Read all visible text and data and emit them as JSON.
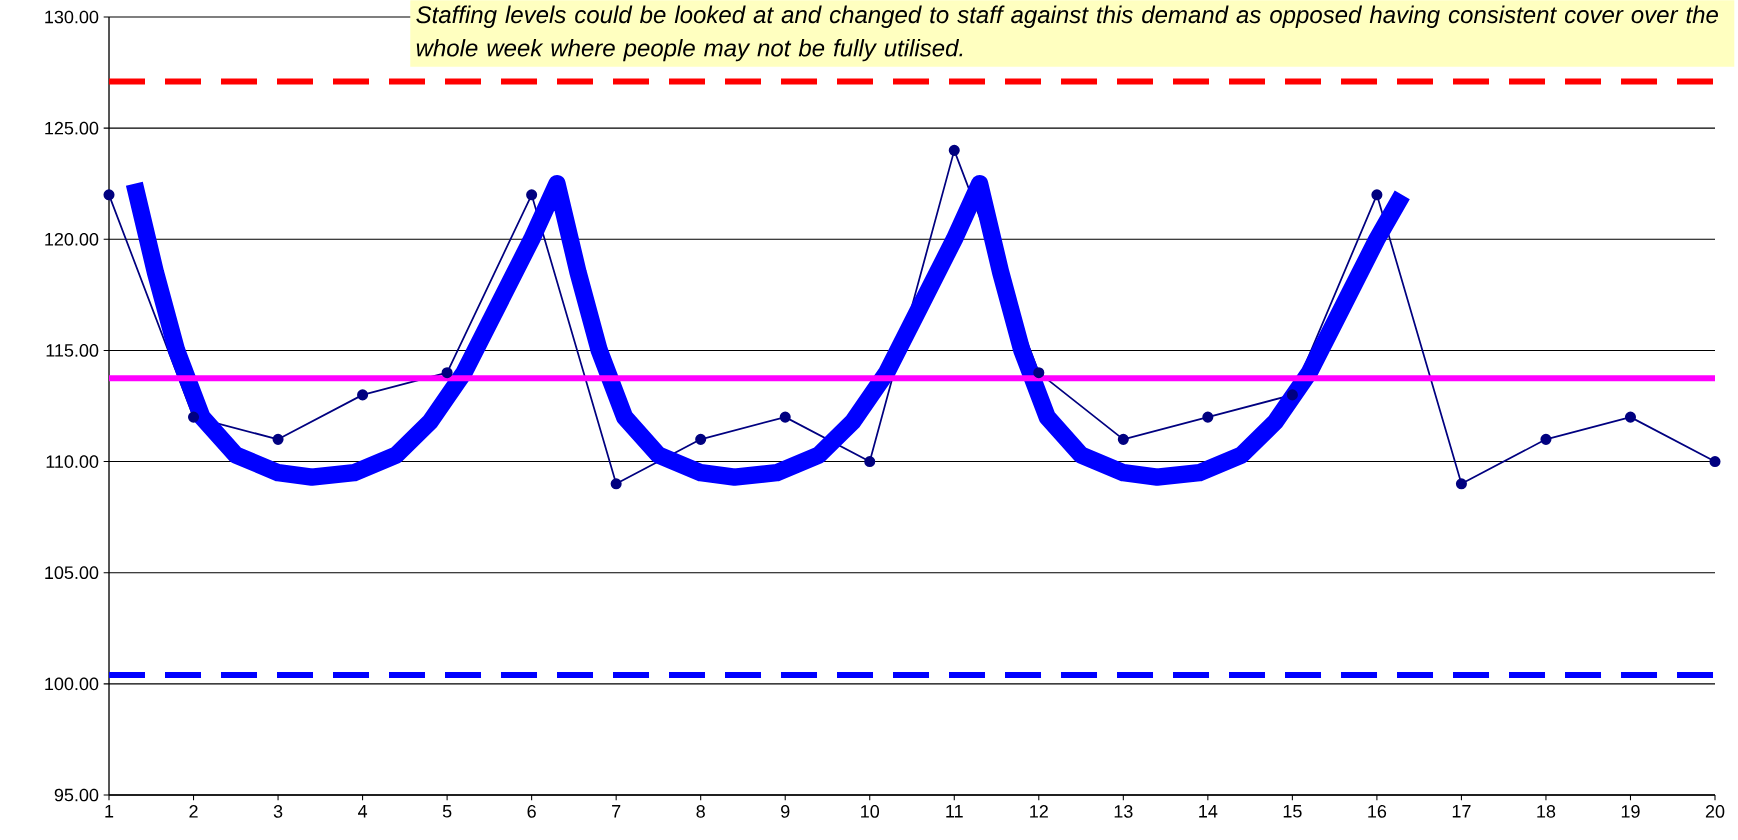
{
  "chart_data": {
    "type": "line",
    "xlim": [
      1,
      20
    ],
    "ylim": [
      95,
      130
    ],
    "x": [
      1,
      2,
      3,
      4,
      5,
      6,
      7,
      8,
      9,
      10,
      11,
      12,
      13,
      14,
      15,
      16,
      17,
      18,
      19,
      20
    ],
    "xticks": [
      1,
      2,
      3,
      4,
      5,
      6,
      7,
      8,
      9,
      10,
      11,
      12,
      13,
      14,
      15,
      16,
      17,
      18,
      19,
      20
    ],
    "yticks": [
      {
        "value": 95,
        "label": "95.00"
      },
      {
        "value": 100,
        "label": "100.00"
      },
      {
        "value": 105,
        "label": "105.00"
      },
      {
        "value": 110,
        "label": "110.00"
      },
      {
        "value": 115,
        "label": "115.00"
      },
      {
        "value": 120,
        "label": "120.00"
      },
      {
        "value": 125,
        "label": "125.00"
      },
      {
        "value": 130,
        "label": "130.00"
      }
    ],
    "grid": "y",
    "marker": "circle",
    "line_style": "solid",
    "series": [
      {
        "color": "#000080",
        "values": [
          122,
          112,
          111,
          113,
          114,
          122,
          109,
          111,
          112,
          110,
          124,
          114,
          111,
          112,
          113,
          122,
          109,
          111,
          112,
          110
        ]
      },
      {
        "color": "#0000ff",
        "marker": "none",
        "x": [
          1.3,
          1.55,
          1.8,
          2.1,
          2.5,
          3.0,
          3.4,
          3.9,
          4.4,
          4.8,
          5.2,
          5.6,
          6.0,
          6.3,
          6.55,
          6.8,
          7.1,
          7.5,
          8.0,
          8.4,
          8.9,
          9.4,
          9.8,
          10.2,
          10.6,
          11.0,
          11.3,
          11.55,
          11.8,
          12.1,
          12.5,
          13.0,
          13.4,
          13.9,
          14.4,
          14.8,
          15.2,
          15.6,
          16.0,
          16.3
        ],
        "values": [
          122.5,
          118.5,
          115,
          112,
          110.3,
          109.5,
          109.3,
          109.5,
          110.3,
          111.8,
          114,
          117,
          120,
          122.5,
          118.5,
          115,
          112,
          110.3,
          109.5,
          109.3,
          109.5,
          110.3,
          111.8,
          114,
          117,
          120,
          122.5,
          118.5,
          115,
          112,
          110.3,
          109.5,
          109.3,
          109.5,
          110.3,
          111.8,
          114,
          117,
          120,
          122
        ]
      }
    ],
    "ref_lines": [
      {
        "axis": "y",
        "value": 127.1,
        "color": "#ff0000",
        "line_style": "dashed"
      },
      {
        "axis": "y",
        "value": 113.75,
        "color": "#ff00ff",
        "line_style": "solid"
      },
      {
        "axis": "y",
        "value": 100.4,
        "color": "#0000ff",
        "line_style": "dashed"
      }
    ],
    "annotations": [
      "Staffing levels could be looked at and changed to staff against this demand as opposed having consistent cover over the whole week where people may not be fully utilised."
    ]
  }
}
